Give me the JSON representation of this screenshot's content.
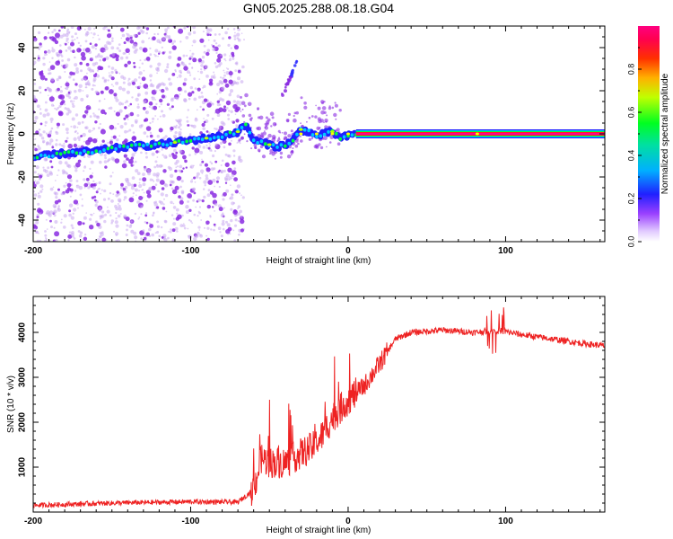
{
  "title": "GN05.2025.288.08.18.G04",
  "colors": {
    "snr_line": "#ee2222",
    "spec_bg": "#ffffff",
    "scatter": "#8a2be2",
    "scatter_light": "#c8a8f0"
  },
  "chart_data": [
    {
      "type": "heatmap",
      "name": "spectrogram",
      "title": "GN05.2025.288.08.18.G04",
      "xlabel": "Height of straight line (km)",
      "ylabel": "Frequency (Hz)",
      "xlim": [
        -200,
        163
      ],
      "ylim": [
        -50,
        50
      ],
      "xticks": [
        -200,
        -100,
        0,
        100
      ],
      "xtick_labels": [
        "-200",
        "-100",
        "0",
        "100"
      ],
      "yticks": [
        -40,
        -20,
        0,
        20,
        40
      ],
      "ytick_labels": [
        "-40",
        "-20",
        "0",
        "20",
        "40"
      ],
      "noise_region_x": [
        -200,
        -70
      ],
      "dominant_line": [
        {
          "x": -200,
          "y": -11
        },
        {
          "x": -180,
          "y": -9
        },
        {
          "x": -160,
          "y": -8
        },
        {
          "x": -140,
          "y": -6
        },
        {
          "x": -120,
          "y": -5
        },
        {
          "x": -100,
          "y": -3
        },
        {
          "x": -80,
          "y": -1
        },
        {
          "x": -70,
          "y": 1
        },
        {
          "x": -65,
          "y": 4
        },
        {
          "x": -60,
          "y": -3
        },
        {
          "x": -50,
          "y": -5
        },
        {
          "x": -45,
          "y": -6
        },
        {
          "x": -40,
          "y": -5
        },
        {
          "x": -35,
          "y": -3
        },
        {
          "x": -30,
          "y": 2
        },
        {
          "x": -25,
          "y": 1
        },
        {
          "x": -20,
          "y": -1
        },
        {
          "x": -10,
          "y": 1
        },
        {
          "x": -5,
          "y": -2
        },
        {
          "x": 0,
          "y": -1
        },
        {
          "x": 5,
          "y": 0
        },
        {
          "x": 163,
          "y": 0
        }
      ],
      "secondary_branch": [
        {
          "x": -40,
          "y": 20
        },
        {
          "x": -35,
          "y": 28
        },
        {
          "x": -33,
          "y": 32
        }
      ],
      "colorbar": {
        "label": "Normalized spectral amplitude",
        "range": [
          0,
          1
        ],
        "ticks": [
          0,
          0.2,
          0.4,
          0.6,
          0.8
        ],
        "tick_labels": [
          "0.0",
          "0.2",
          "0.4",
          "0.6",
          "0.8"
        ],
        "stops": [
          "#ffffff",
          "#b060ff",
          "#2020ff",
          "#00c0ff",
          "#00ff40",
          "#ffff00",
          "#ff8000",
          "#ff0000",
          "#ff00a0"
        ]
      }
    },
    {
      "type": "line",
      "name": "snr",
      "xlabel": "Height of straight line (km)",
      "ylabel": "SNR (10 * v/v)",
      "xlim": [
        -200,
        163
      ],
      "ylim": [
        0,
        4800
      ],
      "xticks": [
        -200,
        -100,
        0,
        100
      ],
      "xtick_labels": [
        "-200",
        "-100",
        "0",
        "100"
      ],
      "yticks": [
        1000,
        2000,
        3000,
        4000
      ],
      "ytick_labels": [
        "1000",
        "2000",
        "3000",
        "4000"
      ],
      "series": [
        {
          "name": "SNR",
          "envelope": [
            {
              "x": -200,
              "y": 150
            },
            {
              "x": -150,
              "y": 200
            },
            {
              "x": -100,
              "y": 230
            },
            {
              "x": -70,
              "y": 220
            },
            {
              "x": -60,
              "y": 500
            },
            {
              "x": -55,
              "y": 1200
            },
            {
              "x": -50,
              "y": 1100
            },
            {
              "x": -40,
              "y": 1100
            },
            {
              "x": -30,
              "y": 1300
            },
            {
              "x": -20,
              "y": 1500
            },
            {
              "x": -10,
              "y": 2100
            },
            {
              "x": 0,
              "y": 2500
            },
            {
              "x": 10,
              "y": 2800
            },
            {
              "x": 20,
              "y": 3300
            },
            {
              "x": 30,
              "y": 3850
            },
            {
              "x": 40,
              "y": 4000
            },
            {
              "x": 60,
              "y": 4050
            },
            {
              "x": 80,
              "y": 4000
            },
            {
              "x": 95,
              "y": 4050
            },
            {
              "x": 110,
              "y": 3950
            },
            {
              "x": 130,
              "y": 3850
            },
            {
              "x": 150,
              "y": 3750
            },
            {
              "x": 163,
              "y": 3700
            }
          ]
        }
      ]
    }
  ]
}
